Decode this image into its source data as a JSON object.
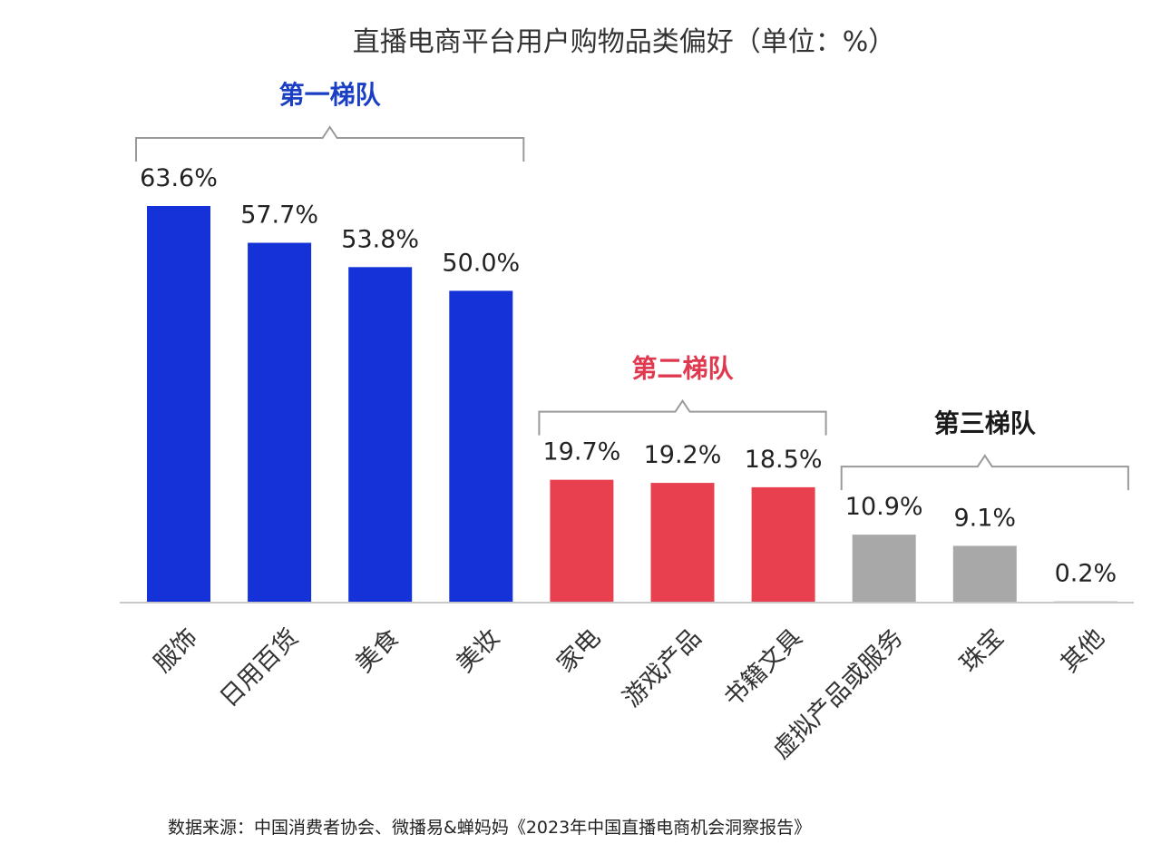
{
  "chart_data": {
    "type": "bar",
    "title": "直播电商平台用户购物品类偏好（单位：%）",
    "xlabel": "",
    "ylabel": "",
    "ylim": [
      0,
      63.6
    ],
    "categories": [
      "服饰",
      "日用百货",
      "美食",
      "美妆",
      "家电",
      "游戏产品",
      "书籍文具",
      "虚拟产品或服务",
      "珠宝",
      "其他"
    ],
    "values": [
      63.6,
      57.7,
      53.8,
      50.0,
      19.7,
      19.2,
      18.5,
      10.9,
      9.1,
      0.2
    ],
    "value_labels": [
      "63.6%",
      "57.7%",
      "53.8%",
      "50.0%",
      "19.7%",
      "19.2%",
      "18.5%",
      "10.9%",
      "9.1%",
      "0.2%"
    ],
    "tiers": [
      {
        "label": "第一梯队",
        "color": "#1a3fc4",
        "bar_color": "#1432d8",
        "start": 0,
        "end": 3
      },
      {
        "label": "第二梯队",
        "color": "#e0384e",
        "bar_color": "#e8404f",
        "start": 4,
        "end": 6
      },
      {
        "label": "第三梯队",
        "color": "#1a1a1a",
        "bar_color": "#a8a8a8",
        "start": 7,
        "end": 9
      }
    ],
    "grid": false,
    "legend": "none"
  },
  "source_note": "数据来源：中国消费者协会、微播易&蝉妈妈《2023年中国直播电商机会洞察报告》"
}
